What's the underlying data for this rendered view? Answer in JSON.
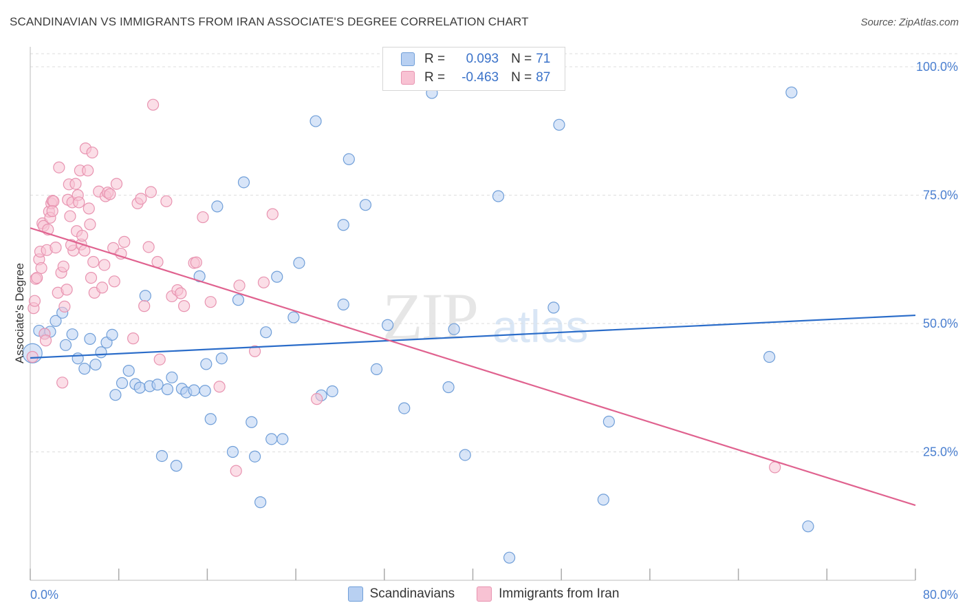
{
  "title": "SCANDINAVIAN VS IMMIGRANTS FROM IRAN ASSOCIATE'S DEGREE CORRELATION CHART",
  "source": "Source: ZipAtlas.com",
  "watermark": {
    "zip": "ZIP",
    "atlas": "atlas"
  },
  "legend": {
    "rows": [
      {
        "r_label": "R =",
        "r_value": "0.093",
        "n_label": "N =",
        "n_value": "71"
      },
      {
        "r_label": "R =",
        "r_value": "-0.463",
        "n_label": "N =",
        "n_value": "87"
      }
    ]
  },
  "bottom_legend": {
    "series1": "Scandinavians",
    "series2": "Immigrants from Iran"
  },
  "colors": {
    "blue_fill": "#b8d0f2",
    "blue_stroke": "#6f9ed8",
    "blue_line": "#2a6cc9",
    "pink_fill": "#f8c2d3",
    "pink_stroke": "#e893b0",
    "pink_line": "#e0628f",
    "grid": "#dddddd",
    "axis": "#999999"
  },
  "chart_data": {
    "type": "scatter",
    "title": "SCANDINAVIAN VS IMMIGRANTS FROM IRAN ASSOCIATE'S DEGREE CORRELATION CHART",
    "xlabel": "",
    "ylabel": "Associate's Degree",
    "xlim": [
      0,
      80
    ],
    "ylim": [
      0,
      105
    ],
    "x_tick_labels": [
      "0.0%",
      "80.0%"
    ],
    "y_ticks": [
      {
        "value": 25,
        "label": "25.0%"
      },
      {
        "value": 50,
        "label": "50.0%"
      },
      {
        "value": 75,
        "label": "75.0%"
      },
      {
        "value": 100,
        "label": "100.0%"
      }
    ],
    "series": [
      {
        "name": "Scandinavians",
        "r": 0.093,
        "n": 71,
        "trend": {
          "x0": 0,
          "y0": 43.3,
          "x1": 80,
          "y1": 51.6
        },
        "points": [
          [
            0.2,
            44.2
          ],
          [
            0.8,
            48.6
          ],
          [
            1.3,
            48.0
          ],
          [
            1.8,
            48.4
          ],
          [
            2.3,
            50.5
          ],
          [
            2.9,
            52.1
          ],
          [
            3.2,
            45.8
          ],
          [
            3.8,
            47.9
          ],
          [
            4.3,
            43.2
          ],
          [
            4.9,
            41.2
          ],
          [
            5.4,
            47.0
          ],
          [
            5.9,
            42.0
          ],
          [
            6.4,
            44.4
          ],
          [
            6.9,
            46.3
          ],
          [
            7.4,
            47.8
          ],
          [
            7.7,
            36.1
          ],
          [
            8.3,
            38.4
          ],
          [
            8.9,
            40.8
          ],
          [
            9.5,
            38.2
          ],
          [
            9.9,
            37.5
          ],
          [
            10.4,
            55.4
          ],
          [
            10.8,
            37.8
          ],
          [
            11.5,
            38.1
          ],
          [
            11.9,
            24.2
          ],
          [
            12.4,
            37.2
          ],
          [
            12.8,
            39.5
          ],
          [
            13.2,
            22.3
          ],
          [
            13.7,
            37.3
          ],
          [
            14.1,
            36.6
          ],
          [
            14.8,
            37.0
          ],
          [
            15.3,
            59.2
          ],
          [
            15.9,
            42.1
          ],
          [
            16.3,
            31.4
          ],
          [
            16.9,
            72.8
          ],
          [
            17.3,
            43.2
          ],
          [
            18.3,
            25.0
          ],
          [
            18.8,
            54.6
          ],
          [
            19.3,
            77.5
          ],
          [
            20.0,
            30.8
          ],
          [
            20.3,
            24.1
          ],
          [
            20.8,
            15.2
          ],
          [
            21.3,
            48.3
          ],
          [
            21.8,
            27.5
          ],
          [
            22.3,
            59.1
          ],
          [
            22.8,
            27.5
          ],
          [
            23.8,
            51.2
          ],
          [
            24.3,
            61.8
          ],
          [
            25.8,
            89.4
          ],
          [
            26.3,
            36.0
          ],
          [
            27.3,
            36.8
          ],
          [
            28.3,
            53.7
          ],
          [
            28.3,
            69.2
          ],
          [
            28.8,
            82.0
          ],
          [
            30.3,
            73.1
          ],
          [
            31.3,
            41.1
          ],
          [
            32.3,
            49.7
          ],
          [
            33.8,
            33.5
          ],
          [
            37.8,
            37.6
          ],
          [
            38.3,
            48.9
          ],
          [
            39.3,
            24.4
          ],
          [
            42.3,
            74.8
          ],
          [
            43.3,
            4.4
          ],
          [
            47.3,
            53.1
          ],
          [
            47.8,
            88.7
          ],
          [
            51.8,
            15.7
          ],
          [
            52.3,
            30.9
          ],
          [
            66.8,
            43.5
          ],
          [
            68.8,
            95.0
          ],
          [
            70.3,
            10.5
          ],
          [
            36.3,
            94.9
          ],
          [
            15.8,
            36.9
          ]
        ]
      },
      {
        "name": "Immigrants from Iran",
        "r": -0.463,
        "n": 87,
        "trend": {
          "x0": 0,
          "y0": 68.6,
          "x1": 80,
          "y1": 14.6
        },
        "points": [
          [
            0.2,
            43.5
          ],
          [
            0.3,
            53.0
          ],
          [
            0.4,
            54.4
          ],
          [
            0.5,
            58.7
          ],
          [
            0.6,
            58.9
          ],
          [
            0.8,
            62.5
          ],
          [
            0.9,
            64.0
          ],
          [
            1.0,
            60.8
          ],
          [
            1.1,
            69.5
          ],
          [
            1.2,
            69.0
          ],
          [
            1.3,
            48.0
          ],
          [
            1.4,
            46.7
          ],
          [
            1.5,
            64.3
          ],
          [
            1.6,
            68.3
          ],
          [
            1.7,
            71.8
          ],
          [
            1.8,
            70.6
          ],
          [
            1.9,
            73.4
          ],
          [
            2.0,
            73.9
          ],
          [
            2.1,
            73.8
          ],
          [
            2.3,
            64.8
          ],
          [
            2.5,
            56.0
          ],
          [
            2.6,
            80.4
          ],
          [
            2.8,
            59.9
          ],
          [
            2.9,
            38.5
          ],
          [
            3.0,
            61.1
          ],
          [
            3.1,
            53.3
          ],
          [
            3.3,
            56.6
          ],
          [
            3.4,
            74.1
          ],
          [
            3.5,
            77.1
          ],
          [
            3.6,
            70.9
          ],
          [
            3.8,
            73.6
          ],
          [
            3.9,
            64.2
          ],
          [
            4.1,
            77.2
          ],
          [
            4.2,
            68.0
          ],
          [
            4.3,
            75.0
          ],
          [
            4.4,
            73.6
          ],
          [
            4.5,
            79.8
          ],
          [
            4.6,
            65.4
          ],
          [
            4.7,
            67.1
          ],
          [
            4.9,
            64.2
          ],
          [
            5.0,
            84.1
          ],
          [
            5.2,
            79.8
          ],
          [
            5.3,
            72.4
          ],
          [
            5.4,
            69.3
          ],
          [
            5.5,
            58.9
          ],
          [
            5.6,
            83.3
          ],
          [
            5.7,
            62.0
          ],
          [
            5.8,
            56.0
          ],
          [
            6.2,
            75.7
          ],
          [
            6.7,
            61.4
          ],
          [
            6.8,
            74.8
          ],
          [
            7.0,
            75.5
          ],
          [
            7.2,
            75.2
          ],
          [
            7.5,
            64.7
          ],
          [
            7.6,
            58.2
          ],
          [
            7.8,
            77.2
          ],
          [
            8.2,
            63.6
          ],
          [
            8.5,
            65.9
          ],
          [
            9.3,
            47.1
          ],
          [
            9.7,
            73.4
          ],
          [
            10.0,
            74.3
          ],
          [
            10.3,
            53.4
          ],
          [
            10.7,
            64.9
          ],
          [
            10.9,
            75.6
          ],
          [
            11.1,
            92.6
          ],
          [
            11.5,
            62.0
          ],
          [
            11.7,
            43.0
          ],
          [
            12.3,
            73.8
          ],
          [
            12.8,
            55.3
          ],
          [
            13.3,
            56.5
          ],
          [
            13.6,
            55.9
          ],
          [
            13.9,
            53.4
          ],
          [
            14.8,
            61.8
          ],
          [
            15.0,
            61.9
          ],
          [
            15.6,
            70.7
          ],
          [
            16.3,
            54.2
          ],
          [
            17.1,
            37.7
          ],
          [
            18.6,
            21.3
          ],
          [
            18.9,
            57.4
          ],
          [
            20.3,
            44.6
          ],
          [
            21.1,
            58.0
          ],
          [
            21.9,
            71.3
          ],
          [
            25.9,
            35.3
          ],
          [
            67.3,
            22.0
          ],
          [
            2.0,
            71.9
          ],
          [
            3.7,
            65.3
          ],
          [
            6.5,
            57.0
          ]
        ]
      }
    ]
  }
}
